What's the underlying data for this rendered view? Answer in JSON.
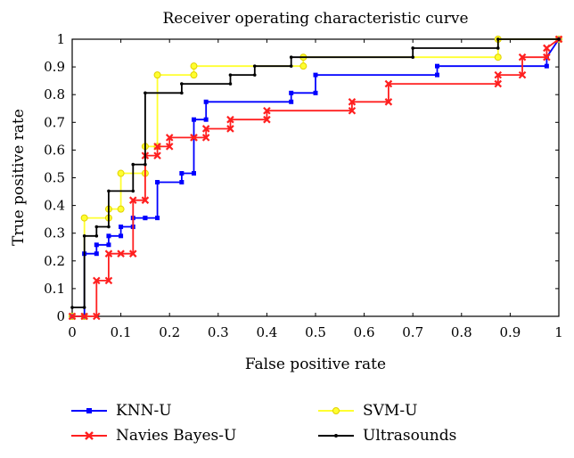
{
  "chart_data": {
    "type": "line",
    "title": "Receiver operating characteristic curve",
    "xlabel": "False positive rate",
    "ylabel": "True positive rate",
    "xlim": [
      0,
      1
    ],
    "ylim": [
      0,
      1
    ],
    "xticks": [
      "0",
      "0.1",
      "0.2",
      "0.3",
      "0.4",
      "0.5",
      "0.6",
      "0.7",
      "0.8",
      "0.9",
      "1"
    ],
    "yticks": [
      "0",
      "0.1",
      "0.2",
      "0.3",
      "0.4",
      "0.5",
      "0.6",
      "0.7",
      "0.8",
      "0.9",
      "1"
    ],
    "grid": false,
    "legend_position": "below",
    "series": [
      {
        "name": "KNN-U",
        "color": "#0000ff",
        "marker": "square",
        "x": [
          0,
          0.025,
          0.025,
          0.05,
          0.05,
          0.075,
          0.075,
          0.1,
          0.1,
          0.125,
          0.125,
          0.15,
          0.15,
          0.175,
          0.175,
          0.225,
          0.225,
          0.25,
          0.25,
          0.275,
          0.275,
          0.45,
          0.45,
          0.5,
          0.5,
          0.75,
          0.75,
          0.975,
          0.975,
          1
        ],
        "y": [
          0,
          0,
          0.226,
          0.226,
          0.258,
          0.258,
          0.29,
          0.29,
          0.323,
          0.323,
          0.355,
          0.355,
          0.355,
          0.355,
          0.484,
          0.484,
          0.516,
          0.516,
          0.71,
          0.71,
          0.774,
          0.774,
          0.806,
          0.806,
          0.871,
          0.871,
          0.903,
          0.903,
          0.935,
          1
        ]
      },
      {
        "name": "Navies Bayes-U",
        "color": "#ff2020",
        "marker": "x",
        "x": [
          0,
          0.025,
          0.05,
          0.05,
          0.075,
          0.075,
          0.1,
          0.125,
          0.125,
          0.15,
          0.15,
          0.175,
          0.175,
          0.2,
          0.2,
          0.25,
          0.25,
          0.275,
          0.275,
          0.325,
          0.325,
          0.4,
          0.4,
          0.575,
          0.575,
          0.65,
          0.65,
          0.875,
          0.875,
          0.925,
          0.925,
          0.975,
          0.975,
          1
        ],
        "y": [
          0,
          0,
          0,
          0.129,
          0.129,
          0.226,
          0.226,
          0.226,
          0.419,
          0.419,
          0.58,
          0.58,
          0.613,
          0.613,
          0.645,
          0.645,
          0.645,
          0.645,
          0.677,
          0.677,
          0.71,
          0.71,
          0.742,
          0.742,
          0.774,
          0.774,
          0.839,
          0.839,
          0.871,
          0.871,
          0.935,
          0.935,
          0.968,
          1
        ]
      },
      {
        "name": "SVM-U",
        "color": "#ffff30",
        "marker": "circle",
        "x": [
          0,
          0.025,
          0.025,
          0.075,
          0.075,
          0.1,
          0.1,
          0.15,
          0.15,
          0.175,
          0.175,
          0.25,
          0.25,
          0.475,
          0.475,
          0.875,
          0.875,
          1
        ],
        "y": [
          0,
          0,
          0.355,
          0.355,
          0.387,
          0.387,
          0.516,
          0.516,
          0.613,
          0.613,
          0.871,
          0.871,
          0.903,
          0.903,
          0.935,
          0.935,
          1,
          1
        ]
      },
      {
        "name": "Ultrasounds",
        "color": "#000000",
        "marker": "dot",
        "x": [
          0,
          0.025,
          0.025,
          0.05,
          0.05,
          0.075,
          0.075,
          0.125,
          0.125,
          0.15,
          0.15,
          0.225,
          0.225,
          0.325,
          0.325,
          0.375,
          0.375,
          0.45,
          0.45,
          0.7,
          0.7,
          0.875,
          0.875,
          1
        ],
        "y": [
          0.032,
          0.032,
          0.29,
          0.29,
          0.323,
          0.323,
          0.452,
          0.452,
          0.548,
          0.548,
          0.806,
          0.806,
          0.839,
          0.839,
          0.871,
          0.871,
          0.903,
          0.903,
          0.935,
          0.935,
          0.968,
          0.968,
          1,
          1
        ]
      }
    ]
  }
}
